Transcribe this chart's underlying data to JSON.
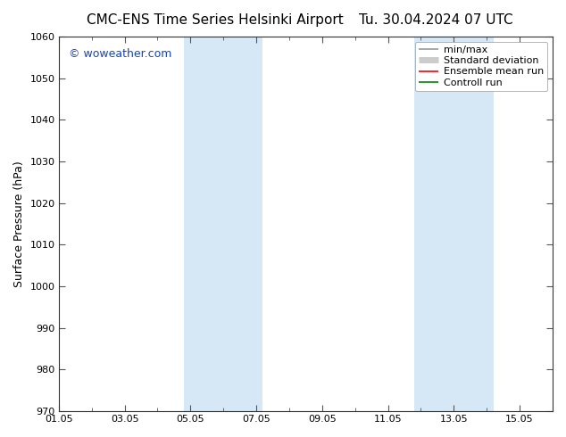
{
  "title_left": "CMC-ENS Time Series Helsinki Airport",
  "title_right": "Tu. 30.04.2024 07 UTC",
  "ylabel": "Surface Pressure (hPa)",
  "ylim": [
    970,
    1060
  ],
  "yticks": [
    970,
    980,
    990,
    1000,
    1010,
    1020,
    1030,
    1040,
    1050,
    1060
  ],
  "xlim": [
    0,
    15
  ],
  "xtick_labels": [
    "01.05",
    "03.05",
    "05.05",
    "07.05",
    "09.05",
    "11.05",
    "13.05",
    "15.05"
  ],
  "xtick_positions_days": [
    0,
    2,
    4,
    6,
    8,
    10,
    12,
    14
  ],
  "minor_xtick_positions": [
    1,
    3,
    5,
    7,
    9,
    11,
    13
  ],
  "blue_bands": [
    {
      "start_day": 3.8,
      "end_day": 5.0
    },
    {
      "start_day": 5.0,
      "end_day": 6.2
    },
    {
      "start_day": 10.8,
      "end_day": 12.0
    },
    {
      "start_day": 12.0,
      "end_day": 13.2
    }
  ],
  "watermark": "© woweather.com",
  "watermark_color": "#1144cc",
  "background_color": "#ffffff",
  "plot_bg_color": "#ffffff",
  "band_color": "#d6e8f5",
  "legend_items": [
    {
      "label": "min/max",
      "color": "#999999",
      "lw": 1.2
    },
    {
      "label": "Standard deviation",
      "color": "#cccccc",
      "lw": 5
    },
    {
      "label": "Ensemble mean run",
      "color": "#ff0000",
      "lw": 1.2
    },
    {
      "label": "Controll run",
      "color": "#008800",
      "lw": 1.2
    }
  ],
  "title_fontsize": 11,
  "axis_label_fontsize": 9,
  "tick_fontsize": 8,
  "legend_fontsize": 8,
  "watermark_fontsize": 9
}
